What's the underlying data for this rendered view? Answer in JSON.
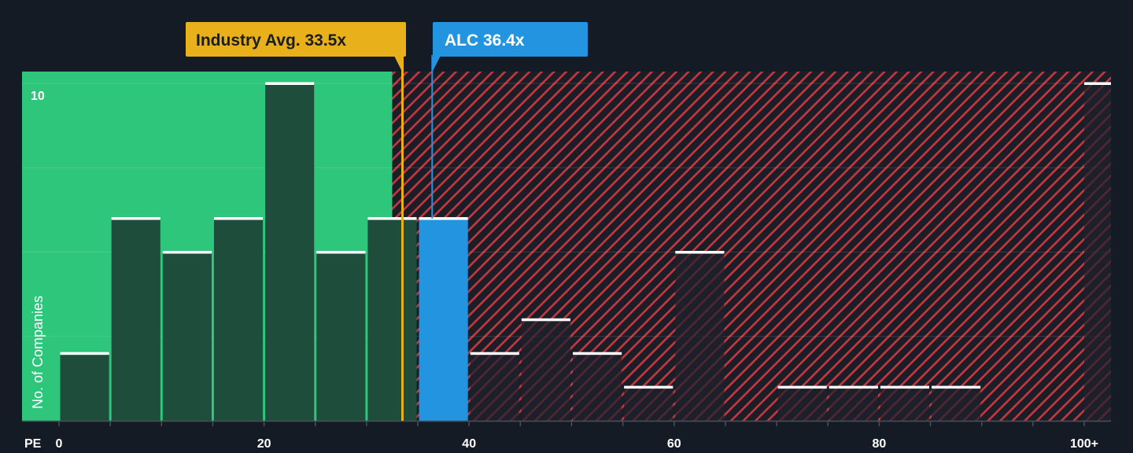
{
  "chart_data": {
    "type": "bar",
    "xlabel": "PE",
    "ylabel": "No. of Companies",
    "x_ticks": [
      "0",
      "20",
      "40",
      "60",
      "80",
      "100+"
    ],
    "y_ticks": [
      "10"
    ],
    "xlim": [
      0,
      100
    ],
    "ylim": [
      0,
      10.35
    ],
    "bin_width": 5,
    "categories": [
      "0-5",
      "5-10",
      "10-15",
      "15-20",
      "20-25",
      "25-30",
      "30-35",
      "35-40",
      "40-45",
      "45-50",
      "50-55",
      "55-60",
      "60-65",
      "65-70",
      "70-75",
      "75-80",
      "80-85",
      "85-90",
      "90-95",
      "95-100",
      "100+"
    ],
    "values": [
      2,
      6,
      5,
      6,
      10,
      5,
      6,
      6,
      2,
      3,
      2,
      1,
      5,
      0,
      1,
      1,
      1,
      1,
      0,
      0,
      10
    ],
    "highlight_bin": "35-40",
    "fair_value_max": 32.5,
    "industry_avg": {
      "label": "Industry Avg. 33.5x",
      "value": 33.5
    },
    "company": {
      "label": "ALC 36.4x",
      "value": 36.4
    },
    "colors": {
      "background": "#151b24",
      "fair_zone": "#2ec67a",
      "bar_in_fair_zone": "#1e4d3c",
      "hatch": "#c8373f",
      "company_bar": "#2394e0",
      "industry_marker": "#e8b01a",
      "bar_cap": "#ffffff",
      "text": "#ffffff"
    }
  }
}
